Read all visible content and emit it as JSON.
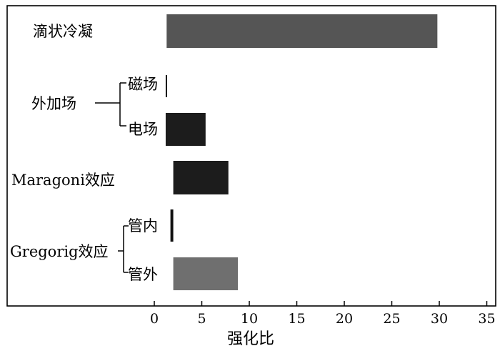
{
  "chart_data": {
    "type": "bar",
    "orientation": "horizontal",
    "xlabel": "强化比",
    "xlim": [
      0,
      35
    ],
    "xticks": [
      "0",
      "5",
      "10",
      "15",
      "20",
      "25",
      "30",
      "35"
    ],
    "grid": false,
    "groups": [
      {
        "label": "外加场",
        "members": [
          "磁场",
          "电场"
        ]
      },
      {
        "label": "Gregorig效应",
        "members": [
          "管内",
          "管外"
        ]
      }
    ],
    "bars": [
      {
        "label": "滴状冷凝",
        "start": 1.3,
        "end": 29.8,
        "color": "#555555"
      },
      {
        "label": "磁场",
        "start": 1.2,
        "end": 1.3,
        "color": "#111111"
      },
      {
        "label": "电场",
        "start": 1.2,
        "end": 5.4,
        "color": "#1c1c1c"
      },
      {
        "label": "Maragoni效应",
        "start": 2.0,
        "end": 7.8,
        "color": "#1c1c1c"
      },
      {
        "label": "管内",
        "start": 1.7,
        "end": 2.0,
        "color": "#111111"
      },
      {
        "label": "管外",
        "start": 2.0,
        "end": 8.8,
        "color": "#6f6f6f"
      }
    ]
  }
}
